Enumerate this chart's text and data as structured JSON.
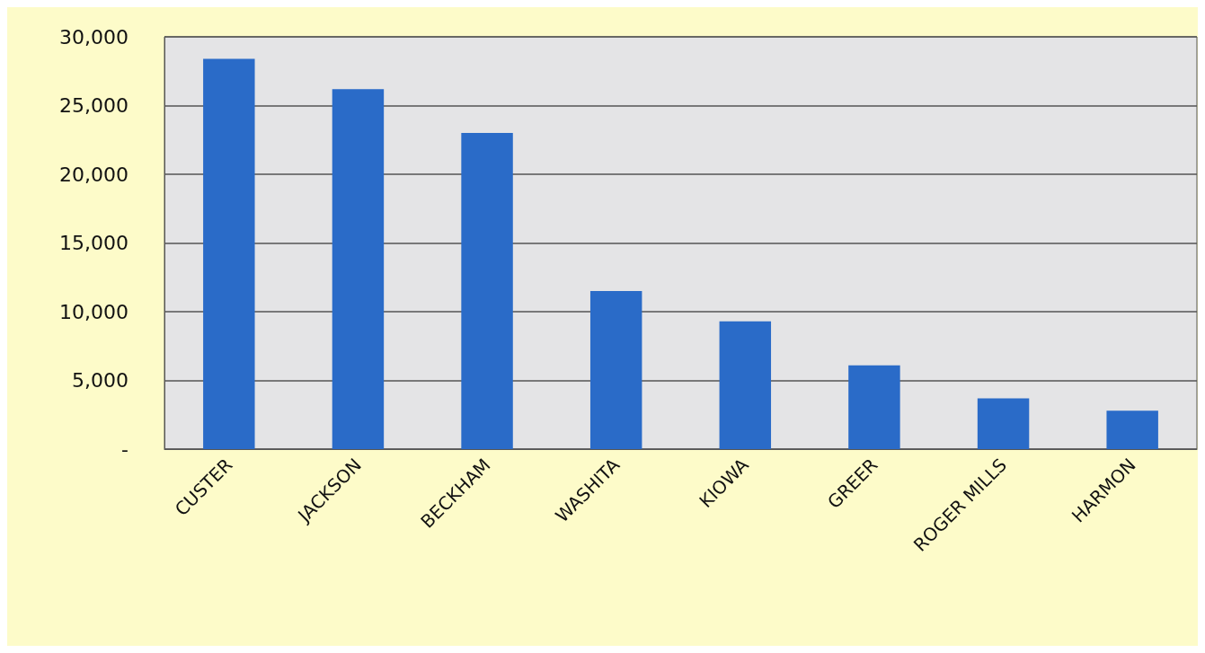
{
  "chart_data": {
    "type": "bar",
    "categories": [
      "CUSTER",
      "JACKSON",
      "BECKHAM",
      "WASHITA",
      "KIOWA",
      "GREER",
      "ROGER MILLS",
      "HARMON"
    ],
    "values": [
      28400,
      26200,
      23000,
      11500,
      9300,
      6100,
      3700,
      2800
    ],
    "color": "#2a6bc8",
    "ylim": [
      0,
      30000
    ],
    "yticks": [
      {
        "value": 0,
        "label": "-"
      },
      {
        "value": 5000,
        "label": "5,000"
      },
      {
        "value": 10000,
        "label": "10,000"
      },
      {
        "value": 15000,
        "label": "15,000"
      },
      {
        "value": 20000,
        "label": "20,000"
      },
      {
        "value": 25000,
        "label": "25,000"
      },
      {
        "value": 30000,
        "label": "30,000"
      }
    ],
    "grid": "y"
  }
}
